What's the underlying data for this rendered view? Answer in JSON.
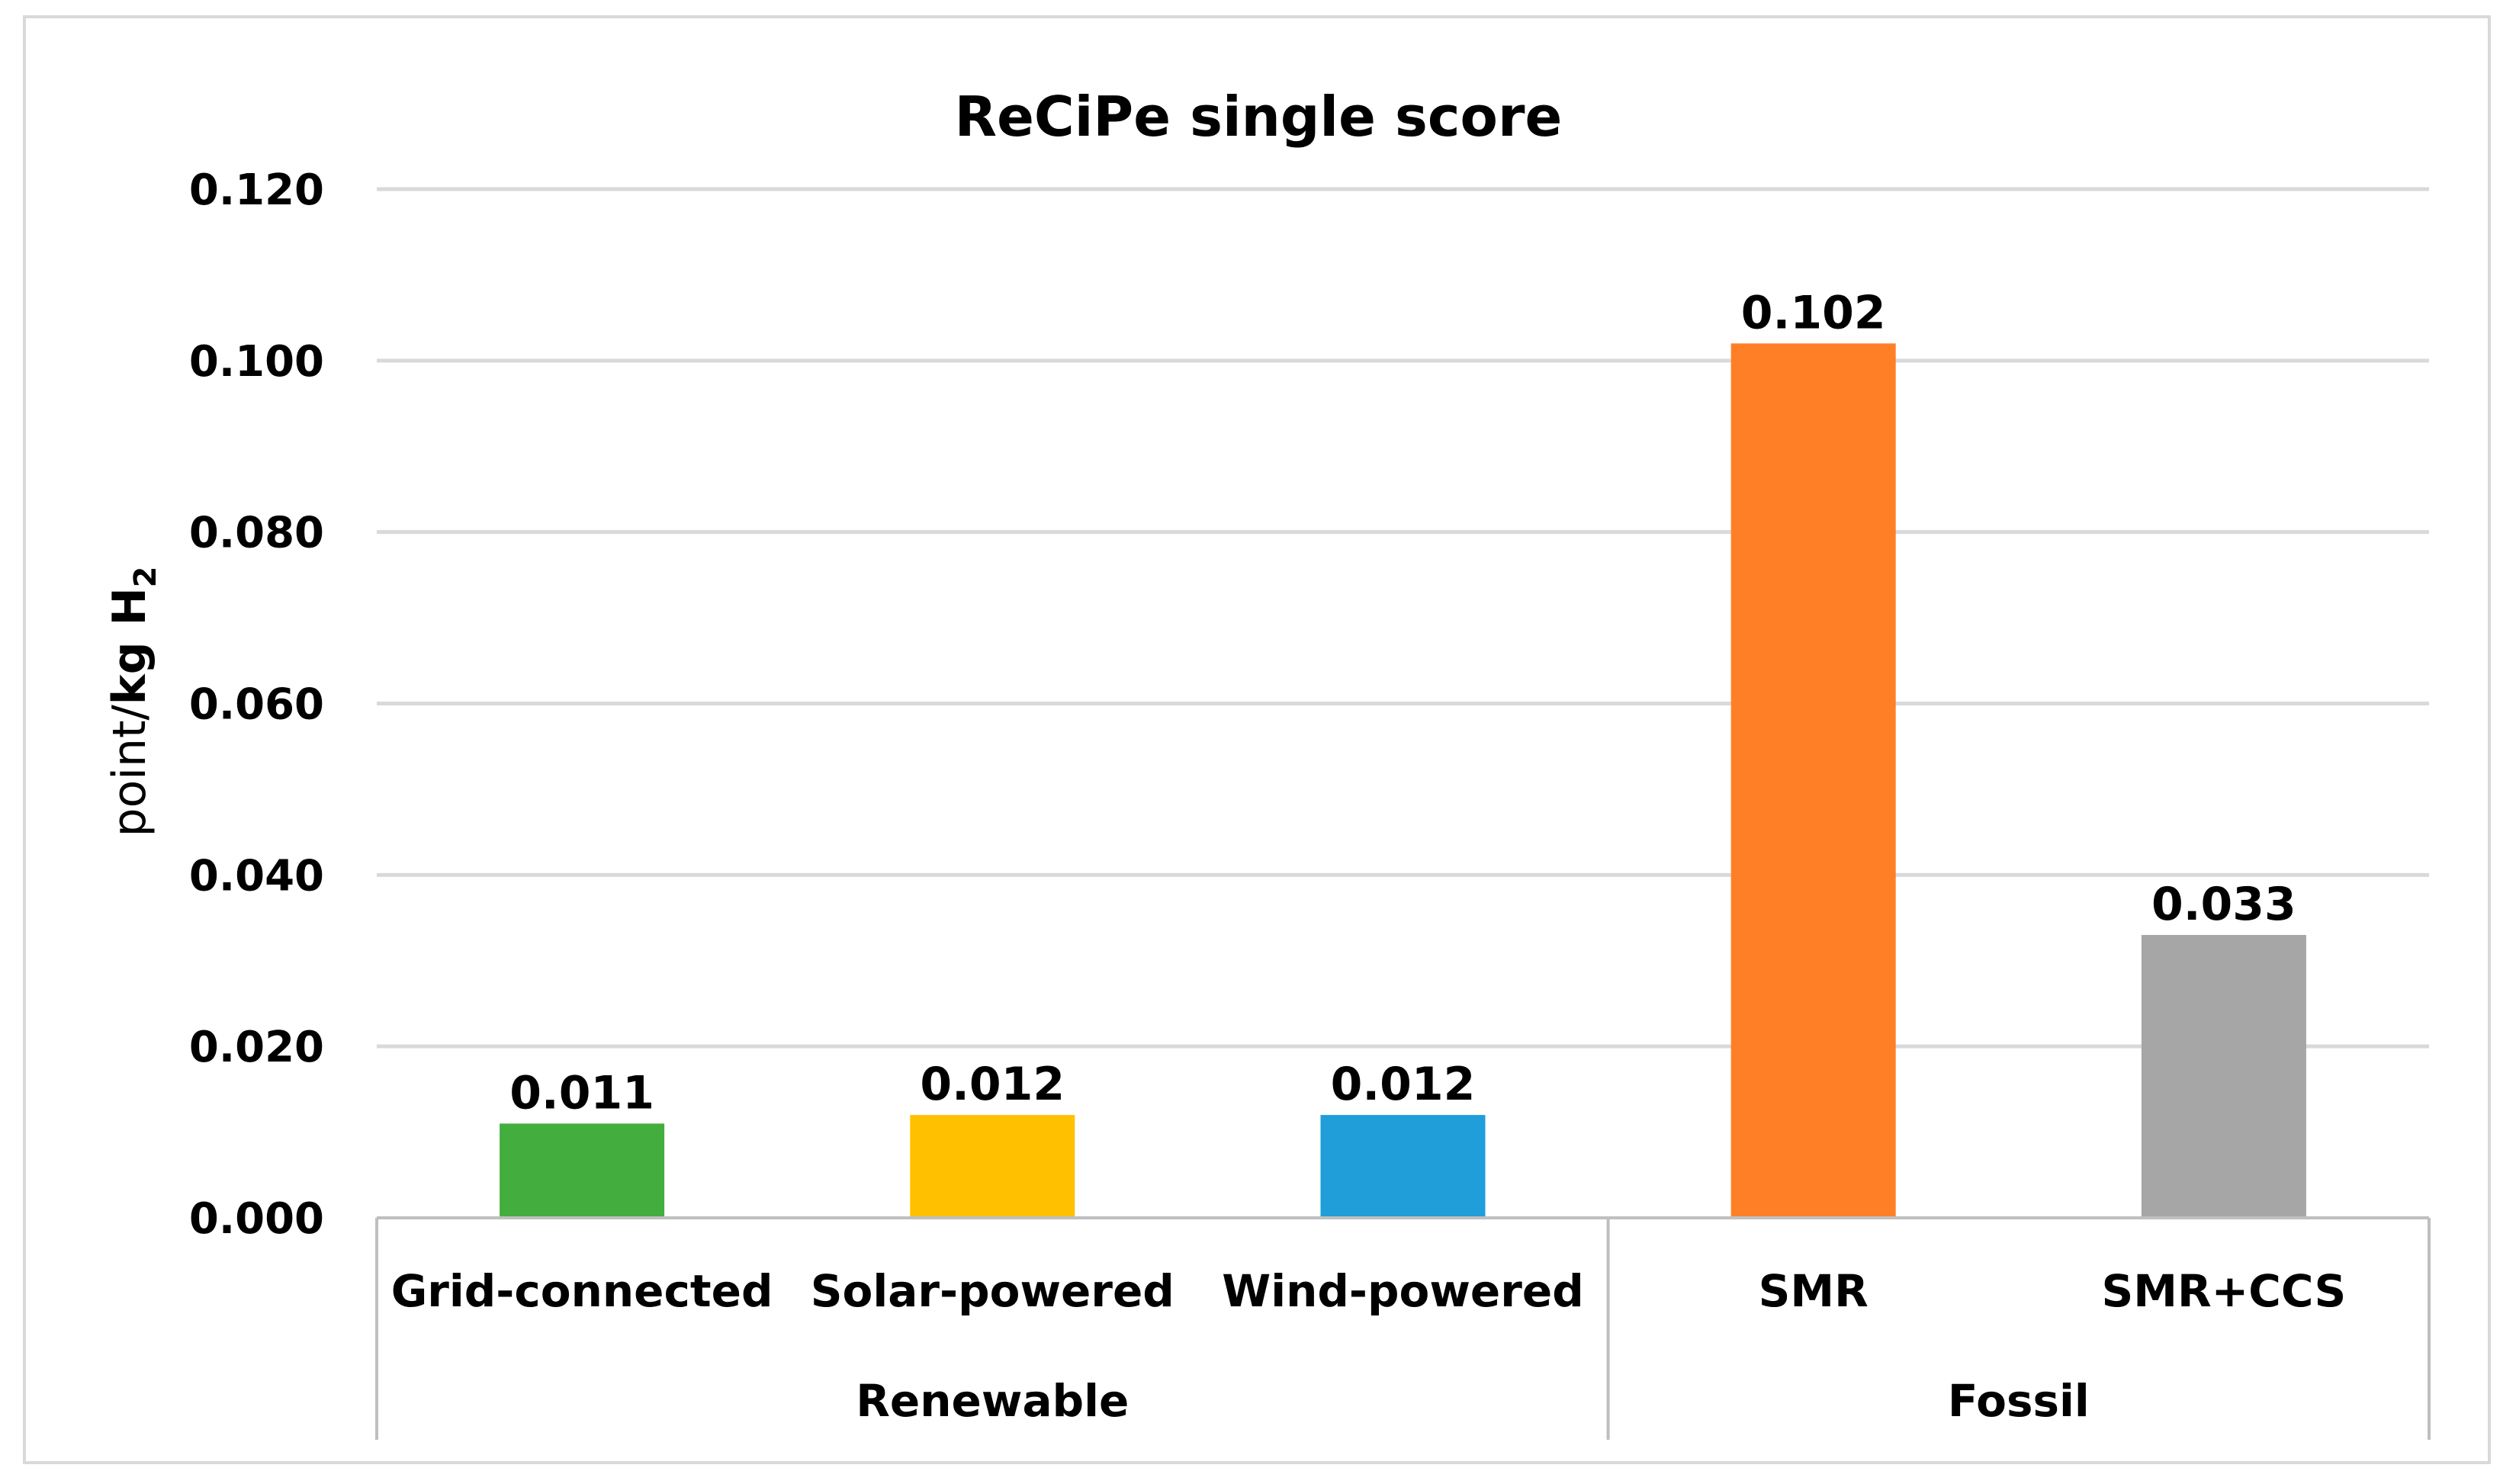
{
  "chart_data": {
    "type": "bar",
    "title": "ReCiPe single score",
    "ylabel": {
      "unit_prefix": "point/",
      "unit_main": "kg H",
      "unit_sub": "2"
    },
    "ylim": [
      0,
      0.12
    ],
    "yticks": [
      "0.000",
      "0.020",
      "0.040",
      "0.060",
      "0.080",
      "0.100",
      "0.120"
    ],
    "ytick_values": [
      0,
      0.02,
      0.04,
      0.06,
      0.08,
      0.1,
      0.12
    ],
    "grid": true,
    "categories": [
      "Grid-connected",
      "Solar-powered",
      "Wind-powered",
      "SMR",
      "SMR+CCS"
    ],
    "values": [
      0.011,
      0.012,
      0.012,
      0.102,
      0.033
    ],
    "value_labels": [
      "0.011",
      "0.012",
      "0.012",
      "0.102",
      "0.033"
    ],
    "colors": [
      "#43ae3d",
      "#ffc000",
      "#1f9ed9",
      "#ff7f27",
      "#a6a6a6"
    ],
    "groups": [
      {
        "label": "Renewable",
        "categories": [
          "Grid-connected",
          "Solar-powered",
          "Wind-powered"
        ]
      },
      {
        "label": "Fossil",
        "categories": [
          "SMR",
          "SMR+CCS"
        ]
      }
    ]
  }
}
